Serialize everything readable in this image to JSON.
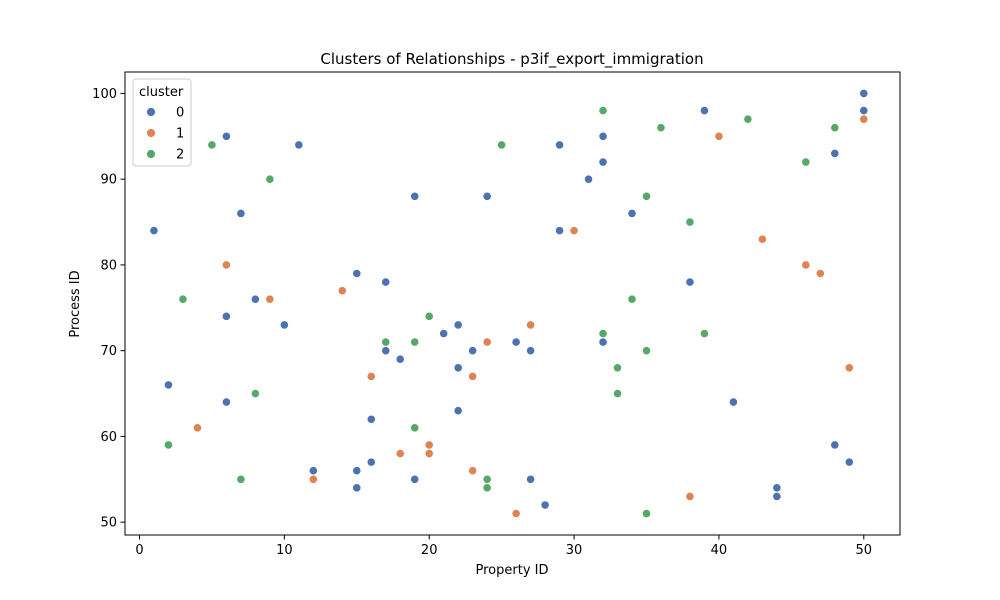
{
  "chart_data": {
    "type": "scatter",
    "title": "Clusters of Relationships - p3if_export_immigration",
    "xlabel": "Property ID",
    "ylabel": "Process ID",
    "xlim": [
      -1,
      52.5
    ],
    "ylim": [
      48.5,
      102.5
    ],
    "xticks": [
      0,
      10,
      20,
      30,
      40,
      50
    ],
    "yticks": [
      50,
      60,
      70,
      80,
      90,
      100
    ],
    "grid": false,
    "legend": {
      "title": "cluster",
      "placement": "top-left"
    },
    "series": [
      {
        "name": "0",
        "color": "#4C72B0",
        "points": [
          [
            1,
            84
          ],
          [
            2,
            66
          ],
          [
            6,
            95
          ],
          [
            6,
            74
          ],
          [
            6,
            64
          ],
          [
            7,
            86
          ],
          [
            8,
            76
          ],
          [
            10,
            73
          ],
          [
            11,
            94
          ],
          [
            12,
            56
          ],
          [
            15,
            79
          ],
          [
            15,
            56
          ],
          [
            15,
            54
          ],
          [
            16,
            62
          ],
          [
            16,
            57
          ],
          [
            17,
            78
          ],
          [
            17,
            70
          ],
          [
            18,
            69
          ],
          [
            19,
            88
          ],
          [
            19,
            55
          ],
          [
            21,
            72
          ],
          [
            22,
            73
          ],
          [
            22,
            68
          ],
          [
            22,
            63
          ],
          [
            23,
            70
          ],
          [
            24,
            88
          ],
          [
            26,
            71
          ],
          [
            27,
            70
          ],
          [
            27,
            55
          ],
          [
            28,
            52
          ],
          [
            29,
            94
          ],
          [
            29,
            84
          ],
          [
            31,
            90
          ],
          [
            32,
            95
          ],
          [
            32,
            92
          ],
          [
            32,
            71
          ],
          [
            34,
            86
          ],
          [
            38,
            78
          ],
          [
            39,
            98
          ],
          [
            41,
            64
          ],
          [
            44,
            54
          ],
          [
            44,
            53
          ],
          [
            48,
            93
          ],
          [
            48,
            59
          ],
          [
            49,
            57
          ],
          [
            50,
            100
          ],
          [
            50,
            98
          ]
        ]
      },
      {
        "name": "1",
        "color": "#DD8452",
        "points": [
          [
            4,
            61
          ],
          [
            6,
            80
          ],
          [
            9,
            76
          ],
          [
            12,
            55
          ],
          [
            14,
            77
          ],
          [
            16,
            67
          ],
          [
            18,
            58
          ],
          [
            20,
            59
          ],
          [
            20,
            58
          ],
          [
            23,
            67
          ],
          [
            23,
            56
          ],
          [
            24,
            71
          ],
          [
            26,
            51
          ],
          [
            27,
            73
          ],
          [
            30,
            84
          ],
          [
            38,
            53
          ],
          [
            40,
            95
          ],
          [
            43,
            83
          ],
          [
            46,
            80
          ],
          [
            47,
            79
          ],
          [
            49,
            68
          ],
          [
            50,
            97
          ]
        ]
      },
      {
        "name": "2",
        "color": "#55A868",
        "points": [
          [
            2,
            59
          ],
          [
            3,
            76
          ],
          [
            5,
            94
          ],
          [
            7,
            55
          ],
          [
            8,
            65
          ],
          [
            9,
            90
          ],
          [
            17,
            71
          ],
          [
            19,
            71
          ],
          [
            19,
            61
          ],
          [
            20,
            74
          ],
          [
            24,
            55
          ],
          [
            24,
            54
          ],
          [
            25,
            94
          ],
          [
            32,
            98
          ],
          [
            32,
            72
          ],
          [
            33,
            68
          ],
          [
            33,
            65
          ],
          [
            34,
            76
          ],
          [
            35,
            88
          ],
          [
            35,
            70
          ],
          [
            35,
            51
          ],
          [
            36,
            96
          ],
          [
            38,
            85
          ],
          [
            39,
            72
          ],
          [
            42,
            97
          ],
          [
            46,
            92
          ],
          [
            48,
            96
          ]
        ]
      }
    ]
  }
}
